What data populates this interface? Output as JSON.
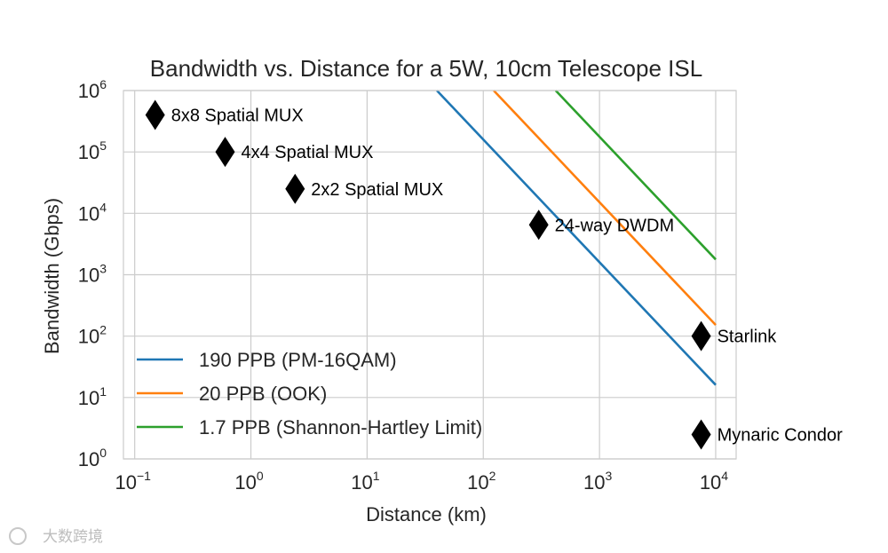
{
  "chart_data": {
    "type": "line",
    "title": "Bandwidth vs. Distance for a 5W, 10cm Telescope ISL",
    "xlabel": "Distance (km)",
    "ylabel": "Bandwidth (Gbps)",
    "xscale": "log",
    "yscale": "log",
    "xlim": [
      0.08,
      15000
    ],
    "ylim": [
      1,
      1000000
    ],
    "grid": true,
    "legend_position": "lower-left",
    "x_ticks": [
      {
        "value": 0.1,
        "base": "10",
        "exp": "−1"
      },
      {
        "value": 1,
        "base": "10",
        "exp": "0"
      },
      {
        "value": 10,
        "base": "10",
        "exp": "1"
      },
      {
        "value": 100,
        "base": "10",
        "exp": "2"
      },
      {
        "value": 1000,
        "base": "10",
        "exp": "3"
      },
      {
        "value": 10000,
        "base": "10",
        "exp": "4"
      }
    ],
    "y_ticks": [
      {
        "value": 1,
        "base": "10",
        "exp": "0"
      },
      {
        "value": 10,
        "base": "10",
        "exp": "1"
      },
      {
        "value": 100,
        "base": "10",
        "exp": "2"
      },
      {
        "value": 1000,
        "base": "10",
        "exp": "3"
      },
      {
        "value": 10000,
        "base": "10",
        "exp": "4"
      },
      {
        "value": 100000,
        "base": "10",
        "exp": "5"
      },
      {
        "value": 1000000,
        "base": "10",
        "exp": "6"
      }
    ],
    "series": [
      {
        "name": "190 PPB (PM-16QAM)",
        "color": "#1f77b4",
        "x": [
          39.9,
          10000
        ],
        "y": [
          1000000,
          16
        ]
      },
      {
        "name": "20 PPB (OOK)",
        "color": "#ff7f0e",
        "x": [
          123,
          10000
        ],
        "y": [
          1000000,
          152
        ]
      },
      {
        "name": "1.7 PPB (Shannon-Hartley Limit)",
        "color": "#2ca02c",
        "x": [
          420,
          10000
        ],
        "y": [
          1000000,
          1770
        ]
      }
    ],
    "points": [
      {
        "label": "8x8 Spatial MUX",
        "x": 0.15,
        "y": 400000
      },
      {
        "label": "4x4 Spatial MUX",
        "x": 0.6,
        "y": 100000
      },
      {
        "label": "2x2 Spatial MUX",
        "x": 2.4,
        "y": 25000
      },
      {
        "label": "24-way DWDM",
        "x": 300,
        "y": 6500
      },
      {
        "label": "Starlink",
        "x": 7500,
        "y": 100
      },
      {
        "label": "Mynaric Condor",
        "x": 7500,
        "y": 2.5
      }
    ],
    "marker_color": "#000000"
  },
  "watermark": "大数跨境"
}
